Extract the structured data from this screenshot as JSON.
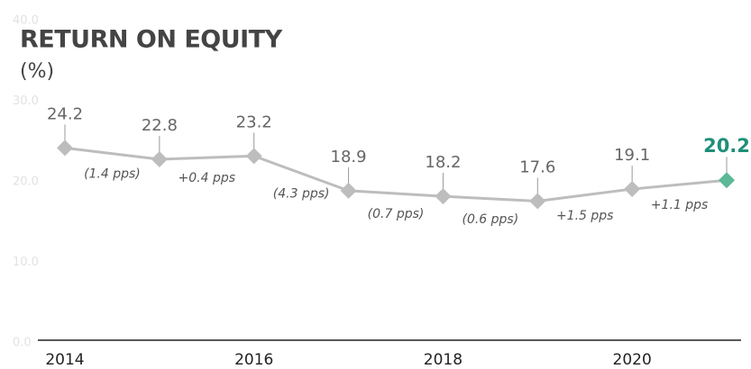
{
  "chart_data": {
    "type": "line",
    "title": "RETURN ON EQUITY",
    "subtitle": "(%)",
    "x": [
      2014,
      2015,
      2016,
      2017,
      2018,
      2019,
      2020,
      2021
    ],
    "series": [
      {
        "name": "Return on equity",
        "color": "#bdbdbd",
        "highlight_color": "#5cb896",
        "values": [
          24.2,
          22.8,
          23.2,
          18.9,
          18.2,
          17.6,
          19.1,
          20.2
        ]
      }
    ],
    "annotations": [
      "(1.4 pps)",
      "+0.4 pps",
      "(4.3 pps)",
      "(0.7 pps)",
      "(0.6 pps)",
      "+1.5 pps",
      "+1.1 pps"
    ],
    "xlim": [
      2014,
      2021
    ],
    "xticks": [
      2014,
      2016,
      2018,
      2020
    ],
    "ylim": [
      0,
      40
    ],
    "yticks": [
      {
        "value": 0,
        "label": "0.0"
      },
      {
        "value": 10,
        "label": "10.0"
      },
      {
        "value": 20,
        "label": "20.0"
      },
      {
        "value": 30,
        "label": "30.0"
      },
      {
        "value": 40,
        "label": "40.0"
      }
    ],
    "grid": false
  }
}
